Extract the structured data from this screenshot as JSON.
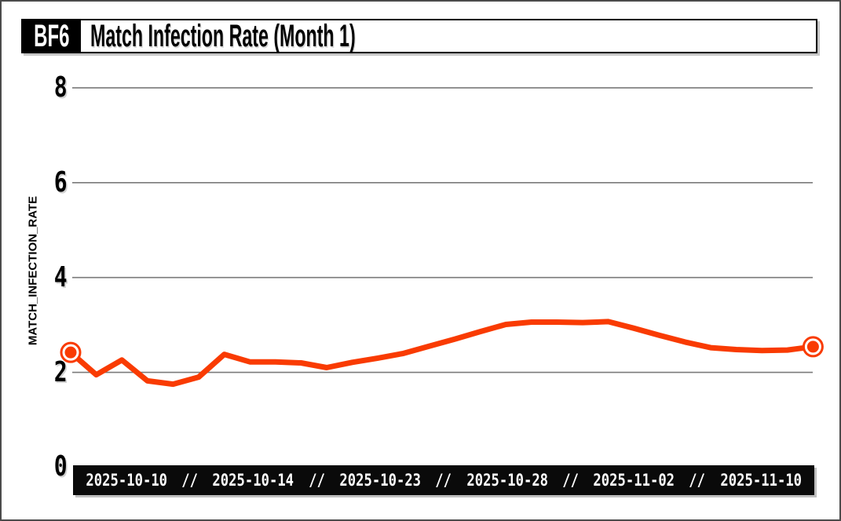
{
  "header": {
    "badge": "BF6",
    "title": "Match Infection Rate (Month 1)"
  },
  "xaxis": {
    "separator": "//"
  },
  "colors": {
    "line": "#F93B02",
    "marker_fill": "#F93B02",
    "marker_ring": "#ffffff",
    "grid": "#7a7a7a",
    "axis_bar_bg": "#0a0a0a",
    "axis_bar_text": "#ffffff",
    "title_bg": "#000000",
    "badge_text": "#ffffff",
    "page_border": "#4b4b4b",
    "text": "#000000"
  },
  "chart_data": {
    "type": "line",
    "title": "Match Infection Rate (Month 1)",
    "badge": "BF6",
    "ylabel": "MATCH_INFECTION_RATE",
    "xlabel": "",
    "ylim": [
      0,
      8.6
    ],
    "yticks": [
      8,
      6,
      4,
      2,
      0
    ],
    "ytick_labels": [
      "8",
      "6",
      "4",
      "2",
      "0"
    ],
    "x_axis_type": "category",
    "n_points": 30,
    "x_tick_labels": [
      "2025-10-10",
      "2025-10-14",
      "2025-10-23",
      "2025-10-28",
      "2025-11-02",
      "2025-11-10"
    ],
    "x_tick_separator": "//",
    "grid": "horizontal-only",
    "legend": "none",
    "endpoint_markers": true,
    "series": [
      {
        "name": "MATCH_INFECTION_RATE",
        "values": [
          2.42,
          1.95,
          2.26,
          1.82,
          1.75,
          1.9,
          2.38,
          2.22,
          2.22,
          2.2,
          2.1,
          2.21,
          2.3,
          2.4,
          2.55,
          2.7,
          2.86,
          3.01,
          3.06,
          3.06,
          3.05,
          3.07,
          2.93,
          2.78,
          2.64,
          2.52,
          2.48,
          2.46,
          2.47,
          2.54
        ]
      }
    ]
  }
}
